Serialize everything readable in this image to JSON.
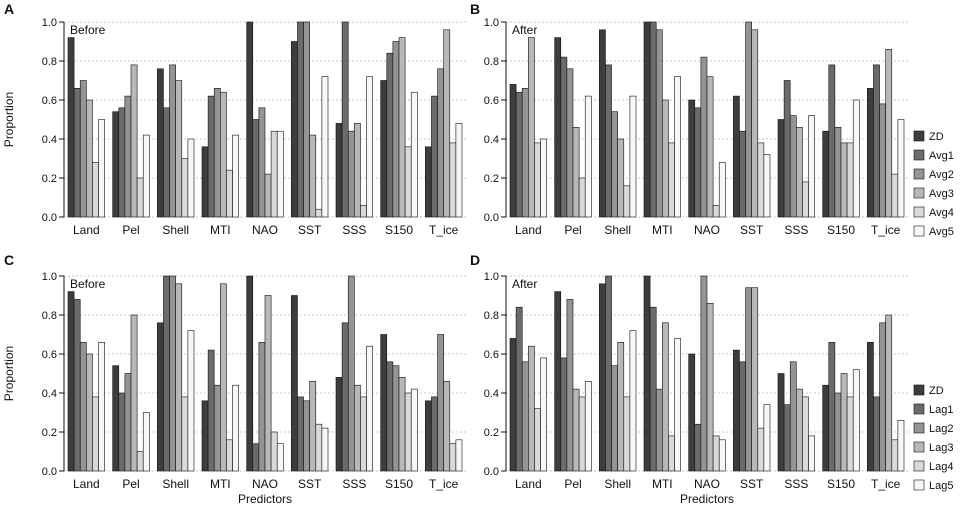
{
  "chart_data": [
    {
      "panel": "A",
      "type": "bar",
      "title": "Before",
      "ylabel": "Proportion",
      "xlabel": "",
      "ylim": [
        0,
        1
      ],
      "yticks": [
        "0.0",
        "0.2",
        "0.4",
        "0.6",
        "0.8",
        "1.0"
      ],
      "grid": true,
      "categories": [
        "Land",
        "Pel",
        "Shell",
        "MTI",
        "NAO",
        "SST",
        "SSS",
        "S150",
        "T_ice"
      ],
      "series": [
        {
          "name": "ZD",
          "values": [
            0.92,
            0.54,
            0.76,
            0.36,
            1.0,
            0.9,
            0.48,
            0.7,
            0.36
          ]
        },
        {
          "name": "Avg1",
          "values": [
            0.66,
            0.56,
            0.56,
            0.62,
            0.5,
            1.0,
            1.0,
            0.84,
            0.62
          ]
        },
        {
          "name": "Avg2",
          "values": [
            0.7,
            0.62,
            0.78,
            0.66,
            0.56,
            1.0,
            0.44,
            0.9,
            0.76
          ]
        },
        {
          "name": "Avg3",
          "values": [
            0.6,
            0.78,
            0.7,
            0.64,
            0.22,
            0.42,
            0.48,
            0.92,
            0.96
          ]
        },
        {
          "name": "Avg4",
          "values": [
            0.28,
            0.2,
            0.3,
            0.24,
            0.44,
            0.04,
            0.06,
            0.36,
            0.38
          ]
        },
        {
          "name": "Avg5",
          "values": [
            0.5,
            0.42,
            0.4,
            0.42,
            0.44,
            0.72,
            0.72,
            0.64,
            0.48
          ]
        }
      ]
    },
    {
      "panel": "B",
      "type": "bar",
      "title": "After",
      "ylabel": "",
      "xlabel": "",
      "ylim": [
        0,
        1
      ],
      "yticks": [
        "0.0",
        "0.2",
        "0.4",
        "0.6",
        "0.8",
        "1.0"
      ],
      "grid": true,
      "categories": [
        "Land",
        "Pel",
        "Shell",
        "MTI",
        "NAO",
        "SST",
        "SSS",
        "S150",
        "T_ice"
      ],
      "series": [
        {
          "name": "ZD",
          "values": [
            0.68,
            0.92,
            0.96,
            1.0,
            0.6,
            0.62,
            0.5,
            0.44,
            0.66
          ]
        },
        {
          "name": "Avg1",
          "values": [
            0.64,
            0.82,
            0.78,
            1.0,
            0.56,
            0.44,
            0.7,
            0.78,
            0.78
          ]
        },
        {
          "name": "Avg2",
          "values": [
            0.66,
            0.76,
            0.54,
            0.96,
            0.82,
            1.0,
            0.52,
            0.46,
            0.58
          ]
        },
        {
          "name": "Avg3",
          "values": [
            0.92,
            0.46,
            0.4,
            0.6,
            0.72,
            0.96,
            0.46,
            0.38,
            0.86
          ]
        },
        {
          "name": "Avg4",
          "values": [
            0.38,
            0.2,
            0.16,
            0.38,
            0.06,
            0.38,
            0.18,
            0.38,
            0.22
          ]
        },
        {
          "name": "Avg5",
          "values": [
            0.4,
            0.62,
            0.62,
            0.72,
            0.28,
            0.32,
            0.52,
            0.6,
            0.5
          ]
        }
      ],
      "legend": [
        "ZD",
        "Avg1",
        "Avg2",
        "Avg3",
        "Avg4",
        "Avg5"
      ]
    },
    {
      "panel": "C",
      "type": "bar",
      "title": "Before",
      "ylabel": "Proportion",
      "xlabel": "Predictors",
      "ylim": [
        0,
        1
      ],
      "yticks": [
        "0.0",
        "0.2",
        "0.4",
        "0.6",
        "0.8",
        "1.0"
      ],
      "grid": true,
      "categories": [
        "Land",
        "Pel",
        "Shell",
        "MTI",
        "NAO",
        "SST",
        "SSS",
        "S150",
        "T_ice"
      ],
      "series": [
        {
          "name": "ZD",
          "values": [
            0.92,
            0.54,
            0.76,
            0.36,
            1.0,
            0.9,
            0.48,
            0.7,
            0.36
          ]
        },
        {
          "name": "Lag1",
          "values": [
            0.88,
            0.4,
            1.0,
            0.62,
            0.14,
            0.38,
            0.76,
            0.56,
            0.38
          ]
        },
        {
          "name": "Lag2",
          "values": [
            0.66,
            0.5,
            1.0,
            0.44,
            0.66,
            0.36,
            1.0,
            0.54,
            0.7
          ]
        },
        {
          "name": "Lag3",
          "values": [
            0.6,
            0.8,
            0.96,
            0.96,
            0.9,
            0.46,
            0.44,
            0.48,
            0.46
          ]
        },
        {
          "name": "Lag4",
          "values": [
            0.38,
            0.1,
            0.38,
            0.16,
            0.2,
            0.24,
            0.38,
            0.4,
            0.14
          ]
        },
        {
          "name": "Lag5",
          "values": [
            0.66,
            0.3,
            0.72,
            0.44,
            0.14,
            0.22,
            0.64,
            0.42,
            0.16
          ]
        }
      ]
    },
    {
      "panel": "D",
      "type": "bar",
      "title": "After",
      "ylabel": "",
      "xlabel": "Predictors",
      "ylim": [
        0,
        1
      ],
      "yticks": [
        "0.0",
        "0.2",
        "0.4",
        "0.6",
        "0.8",
        "1.0"
      ],
      "grid": true,
      "categories": [
        "Land",
        "Pel",
        "Shell",
        "MTI",
        "NAO",
        "SST",
        "SSS",
        "S150",
        "T_ice"
      ],
      "series": [
        {
          "name": "ZD",
          "values": [
            0.68,
            0.92,
            0.96,
            1.0,
            0.6,
            0.62,
            0.5,
            0.44,
            0.66
          ]
        },
        {
          "name": "Lag1",
          "values": [
            0.84,
            0.58,
            1.0,
            0.84,
            0.24,
            0.56,
            0.34,
            0.66,
            0.38
          ]
        },
        {
          "name": "Lag2",
          "values": [
            0.56,
            0.88,
            0.54,
            0.42,
            1.0,
            0.94,
            0.56,
            0.4,
            0.76
          ]
        },
        {
          "name": "Lag3",
          "values": [
            0.64,
            0.42,
            0.66,
            0.76,
            0.86,
            0.94,
            0.42,
            0.5,
            0.8
          ]
        },
        {
          "name": "Lag4",
          "values": [
            0.32,
            0.38,
            0.38,
            0.18,
            0.18,
            0.22,
            0.38,
            0.38,
            0.16
          ]
        },
        {
          "name": "Lag5",
          "values": [
            0.58,
            0.46,
            0.72,
            0.68,
            0.16,
            0.34,
            0.18,
            0.52,
            0.26
          ]
        }
      ],
      "legend": [
        "ZD",
        "Lag1",
        "Lag2",
        "Lag3",
        "Lag4",
        "Lag5"
      ]
    }
  ],
  "colors": {
    "series": [
      "#3d3d3d",
      "#6b6b6b",
      "#949494",
      "#b8b8b8",
      "#d9d9d9",
      "#f7f7f7"
    ],
    "grid": "#b8b8b8",
    "axis": "#111111"
  }
}
